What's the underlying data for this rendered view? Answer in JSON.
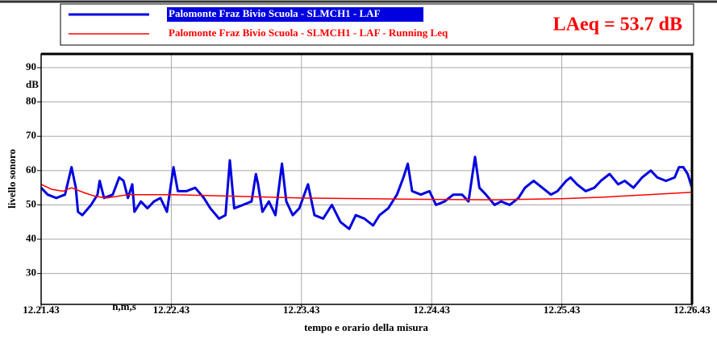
{
  "chart_data": {
    "type": "line",
    "annotation": "LAeq = 53.7 dB",
    "ylabel": "livello sonoro",
    "yunit": "dB",
    "xlabel": "tempo e orario della misura",
    "xunit": "h,m,s",
    "xlim": [
      0,
      300
    ],
    "xticks": [
      {
        "value": 0,
        "label": "12.21.43"
      },
      {
        "value": 60,
        "label": "12.22.43"
      },
      {
        "value": 120,
        "label": "12.23.43"
      },
      {
        "value": 180,
        "label": "12.24.43"
      },
      {
        "value": 240,
        "label": "12.25.43"
      },
      {
        "value": 300,
        "label": "12.26.43"
      }
    ],
    "ylim": [
      21,
      94
    ],
    "yticks": [
      30,
      40,
      50,
      60,
      70,
      80,
      90
    ],
    "grid": true,
    "series": [
      {
        "name": "Palomonte Fraz Bivio Scuola - SLMCH1 - LAF",
        "color": "#0000e0",
        "x": [
          0,
          3,
          7,
          11,
          14,
          16,
          17,
          19,
          23,
          26,
          27,
          29,
          33,
          36,
          38,
          40,
          42,
          43,
          46,
          49,
          52,
          55,
          58,
          61,
          63,
          67,
          71,
          75,
          78,
          82,
          85,
          87,
          89,
          93,
          97,
          99,
          100,
          102,
          105,
          108,
          111,
          113,
          116,
          119,
          123,
          126,
          130,
          134,
          138,
          142,
          145,
          149,
          153,
          156,
          160,
          164,
          167,
          169,
          171,
          175,
          179,
          182,
          186,
          190,
          194,
          197,
          200,
          202,
          205,
          209,
          212,
          216,
          220,
          223,
          227,
          231,
          235,
          238,
          242,
          244,
          247,
          251,
          255,
          258,
          262,
          266,
          269,
          273,
          277,
          281,
          284,
          288,
          292,
          294,
          296,
          298,
          300
        ],
        "values": [
          55,
          53,
          52,
          53,
          61,
          55,
          48,
          47,
          50,
          53,
          57,
          52,
          53,
          58,
          57,
          52,
          56,
          48,
          51,
          49,
          51,
          52,
          48,
          61,
          54,
          54,
          55,
          52,
          49,
          46,
          47,
          63,
          49,
          50,
          51,
          59,
          56,
          48,
          51,
          47,
          62,
          51,
          47,
          49,
          56,
          47,
          46,
          50,
          45,
          43,
          47,
          46,
          44,
          47,
          49,
          53,
          58,
          62,
          54,
          53,
          54,
          50,
          51,
          53,
          53,
          51,
          64,
          55,
          53,
          50,
          51,
          50,
          52,
          55,
          57,
          55,
          53,
          54,
          57,
          58,
          56,
          54,
          55,
          57,
          59,
          56,
          57,
          55,
          58,
          60,
          58,
          57,
          58,
          61,
          61,
          59,
          55
        ]
      },
      {
        "name": "Palomonte Fraz Bivio Scuola - SLMCH1 - LAF - Running Leq",
        "color": "#ff0000",
        "x": [
          0,
          5,
          10,
          14,
          20,
          25,
          30,
          40,
          60,
          90,
          120,
          150,
          180,
          210,
          240,
          260,
          280,
          300
        ],
        "values": [
          56,
          54.5,
          54,
          55,
          53.5,
          52.5,
          52,
          53,
          53,
          52.5,
          52,
          51.8,
          51.6,
          51.5,
          51.8,
          52.3,
          53,
          53.7
        ]
      }
    ]
  }
}
